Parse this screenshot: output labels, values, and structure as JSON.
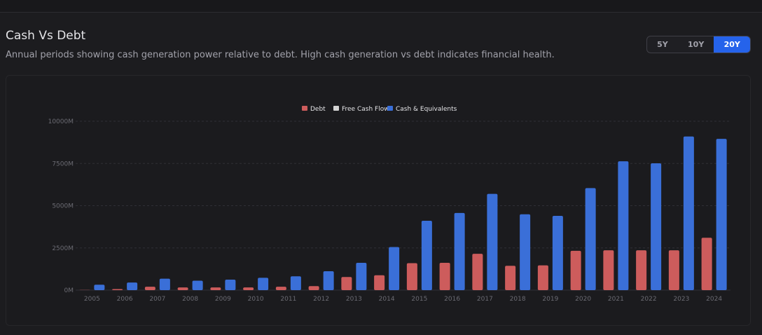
{
  "header": {
    "title": "Cash Vs Debt",
    "subtitle": "Annual periods showing cash generation power relative to debt. High cash generation vs debt indicates financial health."
  },
  "range": {
    "options": [
      "5Y",
      "10Y",
      "20Y"
    ],
    "selected": "20Y"
  },
  "colors": {
    "debt": "#cd5c5c",
    "free_cash_flow": "#d4d4d4",
    "cash": "#3a6fd8",
    "grid": "#2f2f35",
    "tick_text": "#6b6b73",
    "legend_text": "#e4e4e7"
  },
  "chart_data": {
    "type": "bar",
    "title": "",
    "xlabel": "",
    "ylabel": "",
    "ylim": [
      0,
      10000
    ],
    "y_ticks": [
      0,
      2500,
      5000,
      7500,
      10000
    ],
    "y_tick_labels": [
      "0M",
      "2500M",
      "5000M",
      "7500M",
      "10000M"
    ],
    "grid": true,
    "legend_position": "top-center",
    "categories": [
      "2005",
      "2006",
      "2007",
      "2008",
      "2009",
      "2010",
      "2011",
      "2012",
      "2013",
      "2014",
      "2015",
      "2016",
      "2017",
      "2018",
      "2019",
      "2020",
      "2021",
      "2022",
      "2023",
      "2024"
    ],
    "series": [
      {
        "name": "Debt",
        "key": "debt",
        "values": [
          10,
          60,
          200,
          160,
          160,
          160,
          200,
          240,
          780,
          880,
          1600,
          1620,
          2150,
          1440,
          1470,
          2330,
          2360,
          2360,
          2360,
          3100
        ]
      },
      {
        "name": "Free Cash Flow",
        "key": "free_cash_flow",
        "values": [
          0,
          0,
          0,
          0,
          0,
          0,
          0,
          0,
          0,
          0,
          0,
          0,
          0,
          0,
          0,
          0,
          0,
          0,
          0,
          0
        ]
      },
      {
        "name": "Cash & Equivalents",
        "key": "cash",
        "values": [
          320,
          450,
          680,
          560,
          620,
          730,
          820,
          1120,
          1620,
          2550,
          4110,
          4570,
          5700,
          4490,
          4400,
          6040,
          7630,
          7510,
          9100,
          8960
        ]
      }
    ]
  }
}
